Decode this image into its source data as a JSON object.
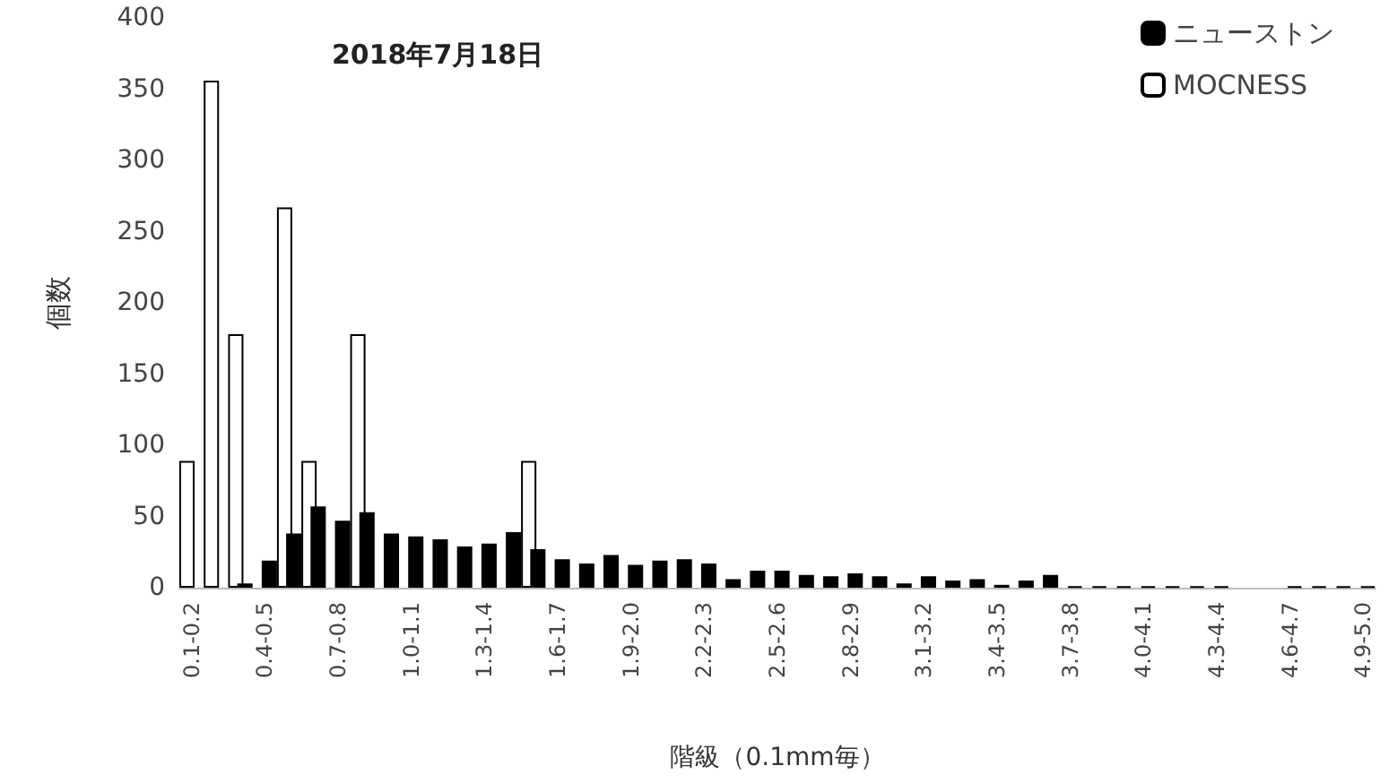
{
  "chart_data": {
    "type": "bar",
    "title": "2018年7月18日",
    "xlabel": "階級（0.1mm毎）",
    "ylabel": "個数",
    "categories": [
      "0.1-0.2",
      null,
      null,
      "0.4-0.5",
      null,
      null,
      "0.7-0.8",
      null,
      null,
      "1.0-1.1",
      null,
      null,
      "1.3-1.4",
      null,
      null,
      "1.6-1.7",
      null,
      null,
      "1.9-2.0",
      null,
      null,
      "2.2-2.3",
      null,
      null,
      "2.5-2.6",
      null,
      null,
      "2.8-2.9",
      null,
      null,
      "3.1-3.2",
      null,
      null,
      "3.4-3.5",
      null,
      null,
      "3.7-3.8",
      null,
      null,
      "4.0-4.1",
      null,
      null,
      "4.3-4.4",
      null,
      null,
      "4.6-4.7",
      null,
      null,
      "4.9-5.0"
    ],
    "series": [
      {
        "name": "MOCNESS",
        "color": "#ffffff",
        "values": [
          89,
          356,
          178,
          0,
          267,
          89,
          0,
          178,
          0,
          0,
          0,
          0,
          0,
          0,
          89,
          0,
          0,
          0,
          0,
          0,
          0,
          0,
          0,
          0,
          0,
          0,
          0,
          0,
          0,
          0,
          0,
          0,
          0,
          0,
          0,
          0,
          0,
          0,
          0,
          0,
          0,
          0,
          0,
          0,
          0,
          0,
          0,
          0,
          0
        ]
      },
      {
        "name": "ニューストン",
        "color": "#000000",
        "values": [
          0,
          0,
          3,
          19,
          38,
          57,
          47,
          53,
          38,
          36,
          34,
          29,
          31,
          39,
          27,
          20,
          17,
          23,
          16,
          19,
          20,
          17,
          6,
          12,
          12,
          9,
          8,
          10,
          8,
          3,
          8,
          5,
          6,
          2,
          5,
          9,
          1,
          1,
          1,
          1,
          1,
          1,
          1,
          0,
          0,
          1,
          1,
          1,
          1
        ]
      }
    ],
    "ylim": [
      0,
      400
    ],
    "yticks": [
      0,
      50,
      100,
      150,
      200,
      250,
      300,
      350,
      400
    ],
    "grid": false,
    "legend": "top right"
  }
}
